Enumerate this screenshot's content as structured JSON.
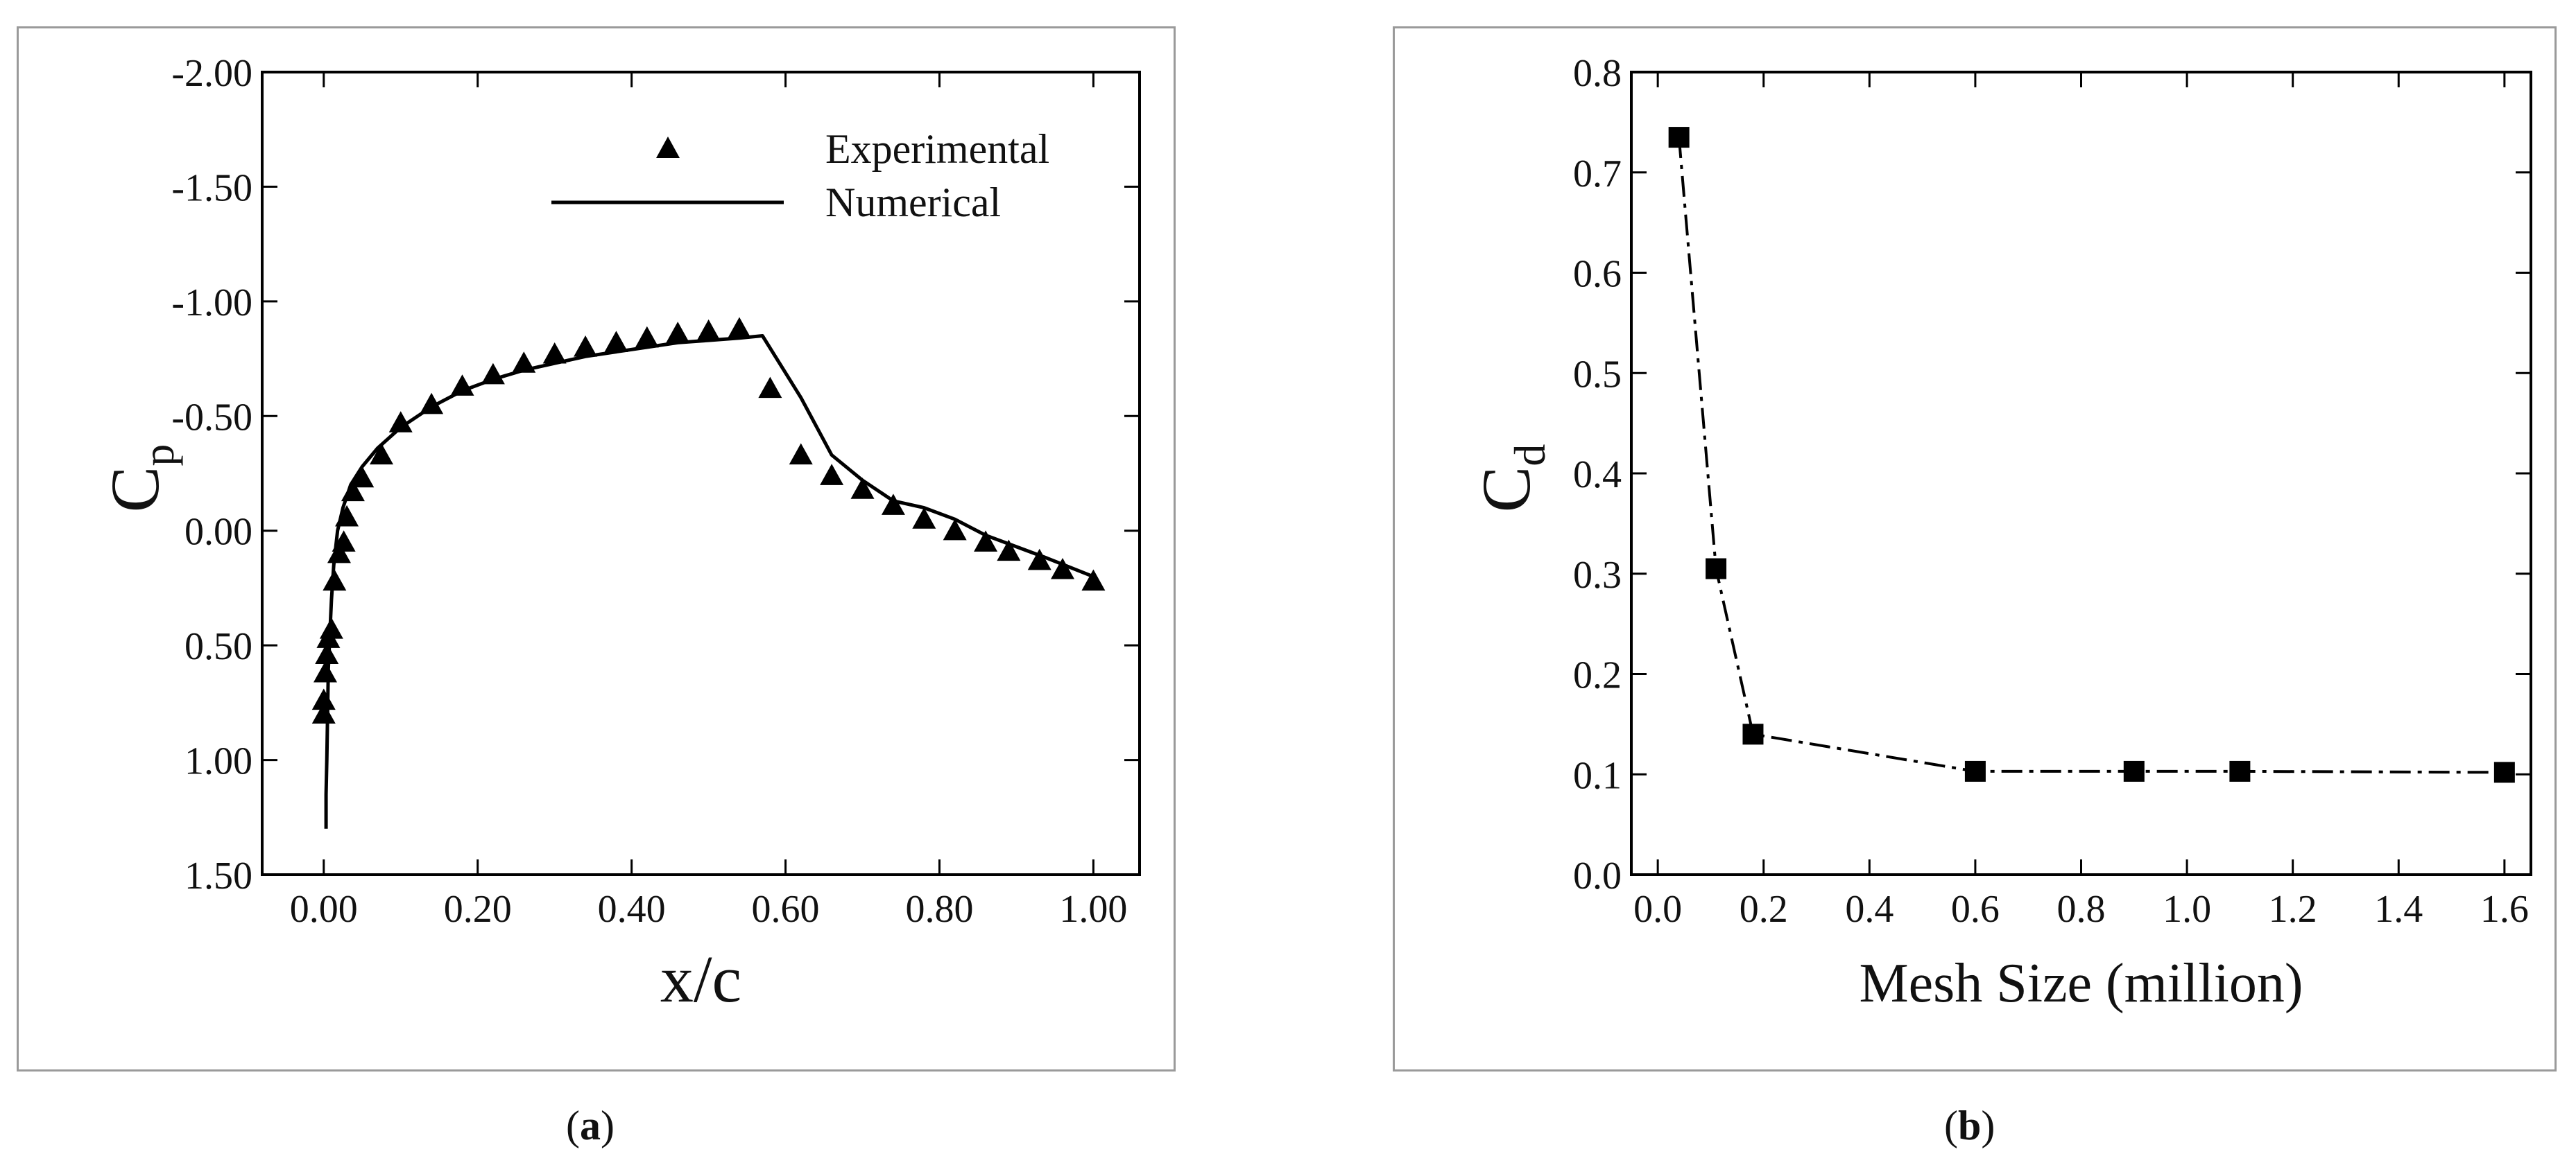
{
  "captions": {
    "a_letter": "a",
    "b_letter": "b"
  },
  "chart_data": [
    {
      "type": "line",
      "panel": "a",
      "xlabel": "x/c",
      "ylabel_main": "C",
      "ylabel_sub": "p",
      "xlim": [
        -0.08,
        1.06
      ],
      "ylim": [
        1.5,
        -2.0
      ],
      "y_inverted": true,
      "x_ticks": [
        0.0,
        0.2,
        0.4,
        0.6,
        0.8,
        1.0
      ],
      "x_tick_labels": [
        "0.00",
        "0.20",
        "0.40",
        "0.60",
        "0.80",
        "1.00"
      ],
      "y_ticks": [
        -2.0,
        -1.5,
        -1.0,
        -0.5,
        0.0,
        0.5,
        1.0,
        1.5
      ],
      "y_tick_labels": [
        "-2.00",
        "-1.50",
        "-1.00",
        "-0.50",
        "0.00",
        "0.50",
        "1.00",
        "1.50"
      ],
      "legend_position": "top-right",
      "series": [
        {
          "name": "Experimental",
          "marker": "triangle",
          "points": [
            [
              0.0,
              0.8
            ],
            [
              0.0,
              0.74
            ],
            [
              0.002,
              0.62
            ],
            [
              0.004,
              0.54
            ],
            [
              0.006,
              0.47
            ],
            [
              0.01,
              0.43
            ],
            [
              0.014,
              0.22
            ],
            [
              0.02,
              0.1
            ],
            [
              0.026,
              0.05
            ],
            [
              0.03,
              -0.06
            ],
            [
              0.038,
              -0.17
            ],
            [
              0.05,
              -0.23
            ],
            [
              0.075,
              -0.33
            ],
            [
              0.1,
              -0.47
            ],
            [
              0.14,
              -0.55
            ],
            [
              0.18,
              -0.63
            ],
            [
              0.22,
              -0.68
            ],
            [
              0.26,
              -0.73
            ],
            [
              0.3,
              -0.77
            ],
            [
              0.34,
              -0.8
            ],
            [
              0.38,
              -0.82
            ],
            [
              0.42,
              -0.84
            ],
            [
              0.46,
              -0.86
            ],
            [
              0.5,
              -0.87
            ],
            [
              0.54,
              -0.88
            ],
            [
              0.58,
              -0.62
            ],
            [
              0.62,
              -0.33
            ],
            [
              0.66,
              -0.24
            ],
            [
              0.7,
              -0.18
            ],
            [
              0.74,
              -0.11
            ],
            [
              0.78,
              -0.05
            ],
            [
              0.82,
              0.0
            ],
            [
              0.86,
              0.05
            ],
            [
              0.89,
              0.09
            ],
            [
              0.93,
              0.13
            ],
            [
              0.96,
              0.17
            ],
            [
              1.0,
              0.22
            ]
          ]
        },
        {
          "name": "Numerical",
          "marker": "none",
          "points": [
            [
              0.003,
              1.3
            ],
            [
              0.003,
              1.15
            ],
            [
              0.004,
              1.0
            ],
            [
              0.005,
              0.8
            ],
            [
              0.006,
              0.6
            ],
            [
              0.008,
              0.45
            ],
            [
              0.01,
              0.3
            ],
            [
              0.013,
              0.15
            ],
            [
              0.018,
              0.0
            ],
            [
              0.025,
              -0.1
            ],
            [
              0.035,
              -0.2
            ],
            [
              0.05,
              -0.28
            ],
            [
              0.07,
              -0.36
            ],
            [
              0.1,
              -0.45
            ],
            [
              0.14,
              -0.54
            ],
            [
              0.18,
              -0.61
            ],
            [
              0.22,
              -0.66
            ],
            [
              0.26,
              -0.7
            ],
            [
              0.3,
              -0.73
            ],
            [
              0.34,
              -0.76
            ],
            [
              0.38,
              -0.78
            ],
            [
              0.42,
              -0.8
            ],
            [
              0.46,
              -0.82
            ],
            [
              0.5,
              -0.83
            ],
            [
              0.54,
              -0.84
            ],
            [
              0.57,
              -0.85
            ],
            [
              0.62,
              -0.58
            ],
            [
              0.66,
              -0.33
            ],
            [
              0.7,
              -0.22
            ],
            [
              0.74,
              -0.13
            ],
            [
              0.78,
              -0.1
            ],
            [
              0.82,
              -0.05
            ],
            [
              0.86,
              0.02
            ],
            [
              0.9,
              0.07
            ],
            [
              0.94,
              0.12
            ],
            [
              0.97,
              0.16
            ],
            [
              1.0,
              0.2
            ]
          ]
        }
      ]
    },
    {
      "type": "line",
      "panel": "b",
      "xlabel": "Mesh Size (million)",
      "ylabel_main": "C",
      "ylabel_sub": "d",
      "xlim": [
        -0.05,
        1.65
      ],
      "ylim": [
        0.0,
        0.8
      ],
      "x_ticks": [
        0.0,
        0.2,
        0.4,
        0.6,
        0.8,
        1.0,
        1.2,
        1.4,
        1.6
      ],
      "x_tick_labels": [
        "0.0",
        "0.2",
        "0.4",
        "0.6",
        "0.8",
        "1.0",
        "1.2",
        "1.4",
        "1.6"
      ],
      "y_ticks": [
        0.0,
        0.1,
        0.2,
        0.3,
        0.4,
        0.5,
        0.6,
        0.7,
        0.8
      ],
      "y_tick_labels": [
        "0.0",
        "0.1",
        "0.2",
        "0.3",
        "0.4",
        "0.5",
        "0.6",
        "0.7",
        "0.8"
      ],
      "series": [
        {
          "name": "Cd",
          "marker": "square",
          "line_style": "dash-dot",
          "x": [
            0.04,
            0.11,
            0.18,
            0.6,
            0.9,
            1.1,
            1.6
          ],
          "y": [
            0.735,
            0.305,
            0.14,
            0.103,
            0.103,
            0.103,
            0.102
          ]
        }
      ]
    }
  ]
}
